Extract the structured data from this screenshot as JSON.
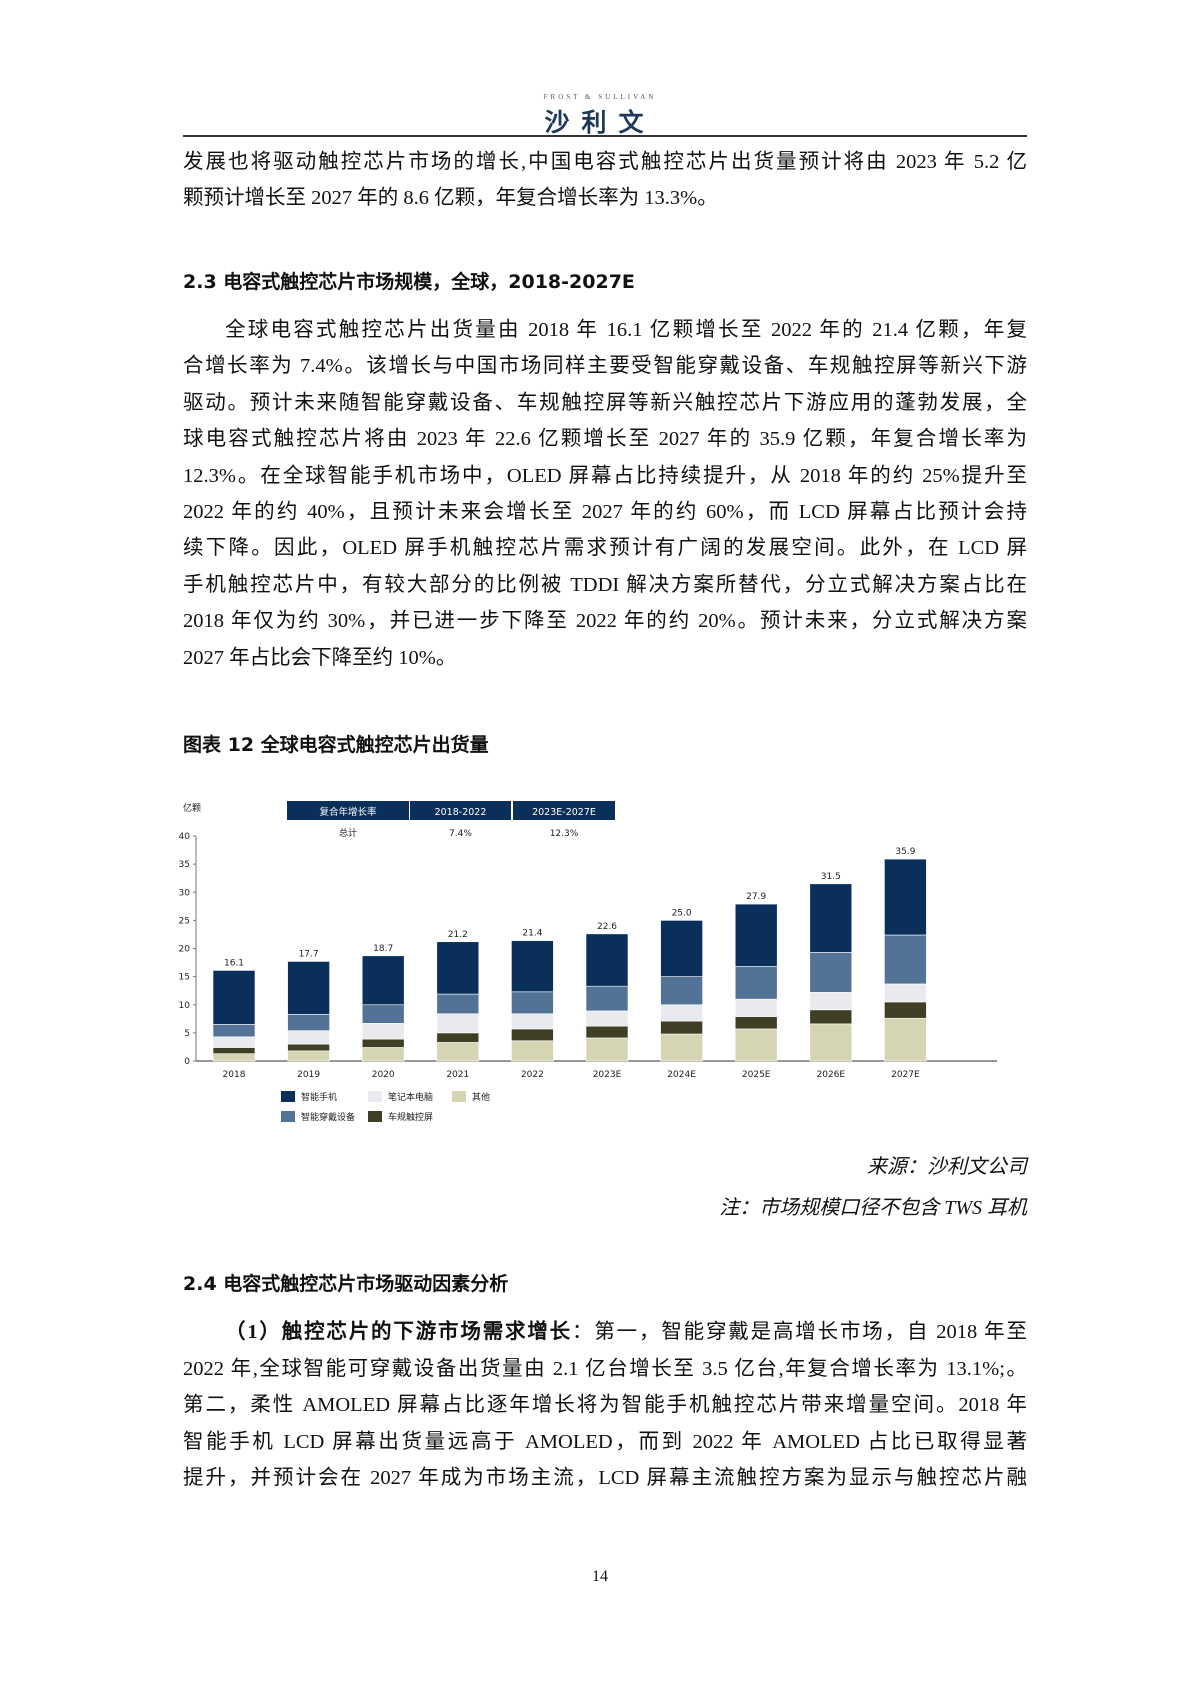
{
  "header": {
    "logo_en": "FROST & SULLIVAN",
    "logo_cn": "沙利文"
  },
  "intro": {
    "lines": [
      "发展也将驱动触控芯片市场的增长,中国电容式触控芯片出货量预计将由 2023 年 5.2 亿",
      "颗预计增长至 2027 年的 8.6 亿颗，年复合增长率为 13.3%。"
    ]
  },
  "section_23": {
    "heading": "2.3 电容式触控芯片市场规模，全球，2018-2027E",
    "lines": [
      "全球电容式触控芯片出货量由 2018 年 16.1 亿颗增长至 2022 年的 21.4 亿颗，年复",
      "合增长率为 7.4%。该增长与中国市场同样主要受智能穿戴设备、车规触控屏等新兴下游",
      "驱动。预计未来随智能穿戴设备、车规触控屏等新兴触控芯片下游应用的蓬勃发展，全",
      "球电容式触控芯片将由 2023 年 22.6 亿颗增长至 2027 年的 35.9 亿颗，年复合增长率为",
      "12.3%。在全球智能手机市场中，OLED 屏幕占比持续提升，从 2018 年的约 25%提升至",
      "2022 年的约 40%，且预计未来会增长至 2027 年的约 60%，而 LCD 屏幕占比预计会持",
      "续下降。因此，OLED 屏手机触控芯片需求预计有广阔的发展空间。此外，在 LCD 屏",
      "手机触控芯片中，有较大部分的比例被 TDDI 解决方案所替代，分立式解决方案占比在",
      "2018 年仅为约 30%，并已进一步下降至 2022 年的约 20%。预计未来，分立式解决方案",
      "2027 年占比会下降至约 10%。"
    ]
  },
  "figure": {
    "title": "图表 12 全球电容式触控芯片出货量",
    "source": "来源：沙利文公司",
    "note": "注：市场规模口径不包含 TWS 耳机"
  },
  "chart_data": {
    "type": "bar",
    "stacked": true,
    "ylabel": "亿颗",
    "ylim": [
      0,
      40
    ],
    "yticks": [
      0,
      5,
      10,
      15,
      20,
      25,
      30,
      35,
      40
    ],
    "grid": false,
    "categories": [
      "2018",
      "2019",
      "2020",
      "2021",
      "2022",
      "2023E",
      "2024E",
      "2025E",
      "2026E",
      "2027E"
    ],
    "totals": [
      "16.1",
      "17.7",
      "18.7",
      "21.2",
      "21.4",
      "22.6",
      "25.0",
      "27.9",
      "31.5",
      "35.9"
    ],
    "series": [
      {
        "name": "其他",
        "color": "#d6d5b3",
        "values": [
          1.3,
          1.8,
          2.4,
          3.3,
          3.6,
          4.1,
          4.8,
          5.7,
          6.6,
          7.6
        ]
      },
      {
        "name": "车规触控屏",
        "color": "#403f26",
        "values": [
          1.1,
          1.2,
          1.5,
          1.7,
          2.1,
          2.1,
          2.3,
          2.2,
          2.5,
          2.9
        ]
      },
      {
        "name": "笔记本电脑",
        "color": "#e8eaee",
        "values": [
          1.9,
          2.4,
          2.8,
          3.4,
          2.7,
          2.7,
          2.9,
          3.1,
          3.1,
          3.2
        ]
      },
      {
        "name": "智能穿戴设备",
        "color": "#527395",
        "values": [
          2.2,
          2.9,
          3.3,
          3.5,
          3.9,
          4.4,
          5.0,
          5.8,
          7.1,
          8.7
        ]
      },
      {
        "name": "智能手机",
        "color": "#0a2f5a",
        "values": [
          9.6,
          9.4,
          8.7,
          9.3,
          9.1,
          9.3,
          10.0,
          11.1,
          12.2,
          13.5
        ]
      }
    ],
    "legend_order": [
      "智能手机",
      "笔记本电脑",
      "其他",
      "智能穿戴设备",
      "车规触控屏"
    ],
    "legend_placement": "bottom",
    "cagr_table": {
      "headers": [
        "复合年增长率",
        "2018-2022",
        "2023E-2027E"
      ],
      "row": [
        "总计",
        "7.4%",
        "12.3%"
      ]
    }
  },
  "section_24": {
    "heading": "2.4 电容式触控芯片市场驱动因素分析",
    "first_bold": "（1）触控芯片的下游市场需求增长",
    "first_rest": "：第一，智能穿戴是高增长市场，自 2018 年至",
    "lines": [
      "2022 年,全球智能可穿戴设备出货量由 2.1 亿台增长至 3.5 亿台,年复合增长率为 13.1%;。",
      "第二，柔性 AMOLED 屏幕占比逐年增长将为智能手机触控芯片带来增量空间。2018 年",
      "智能手机 LCD 屏幕出货量远高于 AMOLED，而到 2022 年  AMOLED 占比已取得显著",
      "提升，并预计会在 2027 年成为市场主流，LCD 屏幕主流触控方案为显示与触控芯片融"
    ]
  },
  "page_number": "14"
}
